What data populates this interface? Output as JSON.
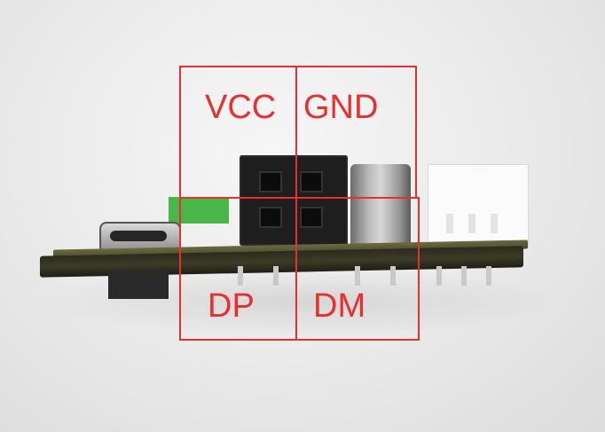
{
  "image_kind": "photo of a small circuit board edge with annotated connector pins",
  "colors": {
    "annotation": "#e53030",
    "background": "#e9e9e9",
    "pcb": "#3c3b27"
  },
  "labels": {
    "vcc": "VCC",
    "gnd": "GND",
    "dp": "DP",
    "dm": "DM"
  }
}
